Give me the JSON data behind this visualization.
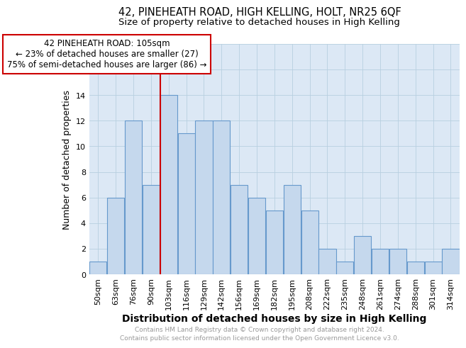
{
  "title": "42, PINEHEATH ROAD, HIGH KELLING, HOLT, NR25 6QF",
  "subtitle": "Size of property relative to detached houses in High Kelling",
  "xlabel": "Distribution of detached houses by size in High Kelling",
  "ylabel": "Number of detached properties",
  "bar_heights": [
    1,
    6,
    12,
    7,
    14,
    11,
    12,
    12,
    7,
    6,
    5,
    7,
    5,
    2,
    1,
    3,
    2,
    2,
    1,
    1,
    2
  ],
  "x_labels": [
    "50sqm",
    "63sqm",
    "76sqm",
    "90sqm",
    "103sqm",
    "116sqm",
    "129sqm",
    "142sqm",
    "156sqm",
    "169sqm",
    "182sqm",
    "195sqm",
    "208sqm",
    "222sqm",
    "235sqm",
    "248sqm",
    "261sqm",
    "274sqm",
    "288sqm",
    "301sqm",
    "314sqm"
  ],
  "bar_color": "#c5d8ed",
  "bar_edge_color": "#6699cc",
  "vline_color": "#cc0000",
  "vline_x_index": 4,
  "annotation_text": "42 PINEHEATH ROAD: 105sqm\n← 23% of detached houses are smaller (27)\n75% of semi-detached houses are larger (86) →",
  "annotation_box_color": "#ffffff",
  "annotation_box_edge_color": "#cc0000",
  "ylim": [
    0,
    18
  ],
  "yticks": [
    0,
    2,
    4,
    6,
    8,
    10,
    12,
    14,
    16,
    18
  ],
  "title_fontsize": 10.5,
  "subtitle_fontsize": 9.5,
  "xlabel_fontsize": 10,
  "ylabel_fontsize": 9,
  "tick_fontsize": 8,
  "annotation_fontsize": 8.5,
  "footer_line1": "Contains HM Land Registry data © Crown copyright and database right 2024.",
  "footer_line2": "Contains public sector information licensed under the Open Government Licence v3.0.",
  "footer_fontsize": 6.5,
  "footer_color": "#999999",
  "background_color": "#ffffff",
  "grid_color": "#b8cfe0",
  "ax_bg_color": "#dce8f5"
}
